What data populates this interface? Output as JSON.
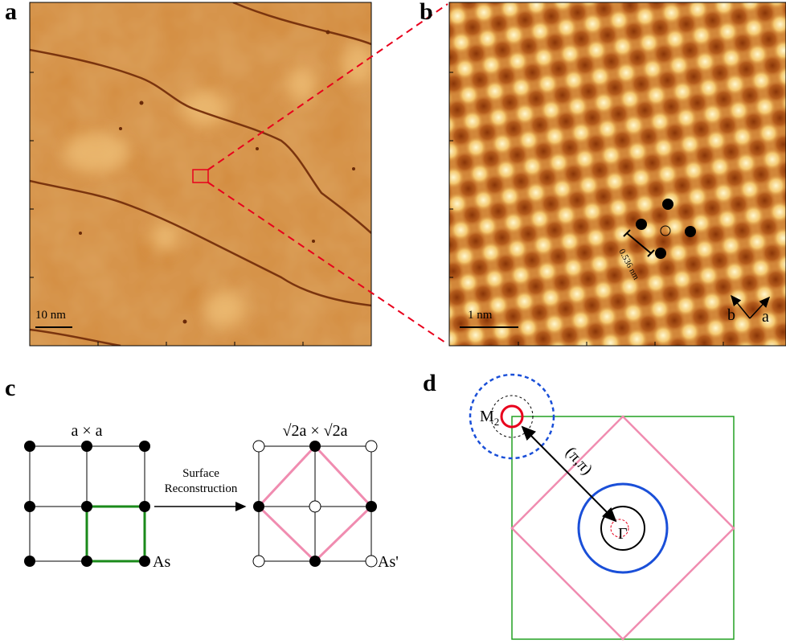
{
  "panels": {
    "a": {
      "label": "a",
      "scale_bar": "10 nm"
    },
    "b": {
      "label": "b",
      "scale_bar": "1 nm",
      "distance": "0.536 nm",
      "axis_b": "b",
      "axis_a": "a"
    },
    "c": {
      "label": "c",
      "left_title": "a × a",
      "right_title": "√2a × √2a",
      "arrow_lines": [
        "Surface",
        "Reconstruction"
      ],
      "left_site": "As",
      "right_site": "As'"
    },
    "d": {
      "label": "d",
      "m_label": "M",
      "m_subscript": "2",
      "vector": "(π,π)",
      "gamma": "Γ"
    }
  }
}
